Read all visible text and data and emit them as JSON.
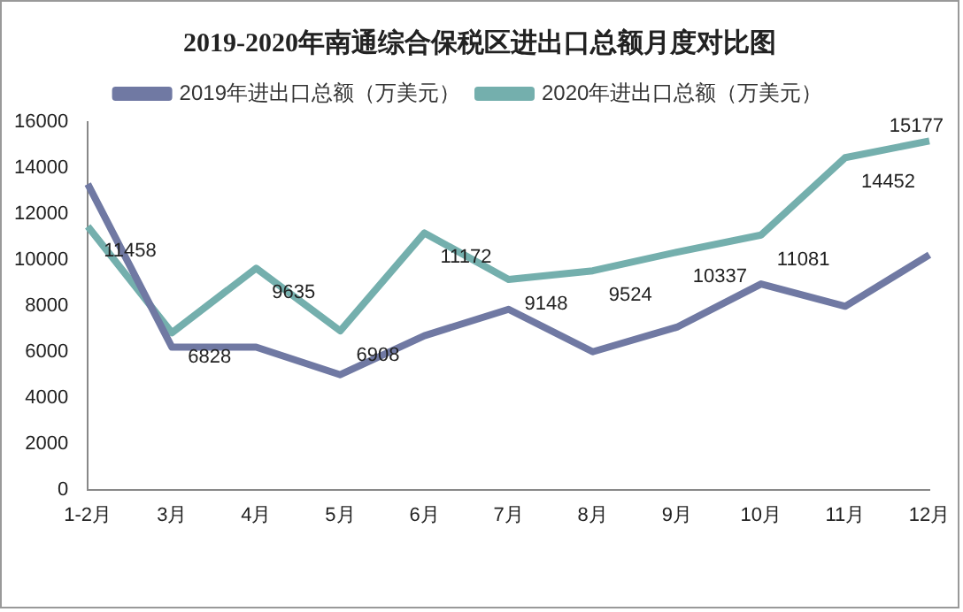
{
  "chart_data": {
    "type": "line",
    "title": "2019-2020年南通综合保税区进出口总额月度对比图",
    "categories": [
      "1-2月",
      "3月",
      "4月",
      "5月",
      "6月",
      "7月",
      "8月",
      "9月",
      "10月",
      "11月",
      "12月"
    ],
    "series": [
      {
        "name": "2019年进出口总额（万美元）",
        "color": "#7079a3",
        "values": [
          13300,
          6200,
          6200,
          5000,
          6700,
          7850,
          6000,
          7070,
          8950,
          7980,
          10220
        ]
      },
      {
        "name": "2020年进出口总额（万美元）",
        "color": "#74afad",
        "values": [
          11458,
          6828,
          9635,
          6908,
          11172,
          9148,
          9524,
          10337,
          11081,
          14452,
          15177
        ],
        "value_labels": [
          "11458",
          "6828",
          "9635",
          "6908",
          "11172",
          "9148",
          "9524",
          "10337",
          "11081",
          "14452",
          "15177"
        ]
      }
    ],
    "ylim": [
      0,
      16000
    ],
    "yticks": [
      0,
      2000,
      4000,
      6000,
      8000,
      10000,
      12000,
      14000,
      16000
    ],
    "legend": "top",
    "grid": false,
    "marker": "none"
  }
}
